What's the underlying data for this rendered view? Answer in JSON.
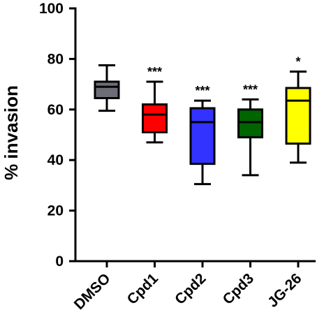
{
  "chart_data": {
    "type": "box",
    "ylabel": "% invasion",
    "xlabel": "",
    "ylim": [
      0,
      100
    ],
    "yticks": [
      0,
      20,
      40,
      60,
      80,
      100
    ],
    "grid": false,
    "categories": [
      "DMSO",
      "Cpd1",
      "Cpd2",
      "Cpd3",
      "JG-26"
    ],
    "boxes": [
      {
        "category": "DMSO",
        "min": 59.5,
        "q1": 64.5,
        "median": 69,
        "q3": 71,
        "max": 77.5,
        "color": "#6d6d78",
        "significance": ""
      },
      {
        "category": "Cpd1",
        "min": 47,
        "q1": 51,
        "median": 58,
        "q3": 62,
        "max": 71,
        "color": "#ff0000",
        "significance": "***"
      },
      {
        "category": "Cpd2",
        "min": 30.5,
        "q1": 38.5,
        "median": 55,
        "q3": 60.5,
        "max": 63.5,
        "color": "#3333ff",
        "significance": "***"
      },
      {
        "category": "Cpd3",
        "min": 34,
        "q1": 49,
        "median": 55,
        "q3": 60,
        "max": 64,
        "color": "#006400",
        "significance": "***"
      },
      {
        "category": "JG-26",
        "min": 39,
        "q1": 46.5,
        "median": 63.5,
        "q3": 68.5,
        "max": 75,
        "color": "#ffff00",
        "significance": "*"
      }
    ]
  }
}
